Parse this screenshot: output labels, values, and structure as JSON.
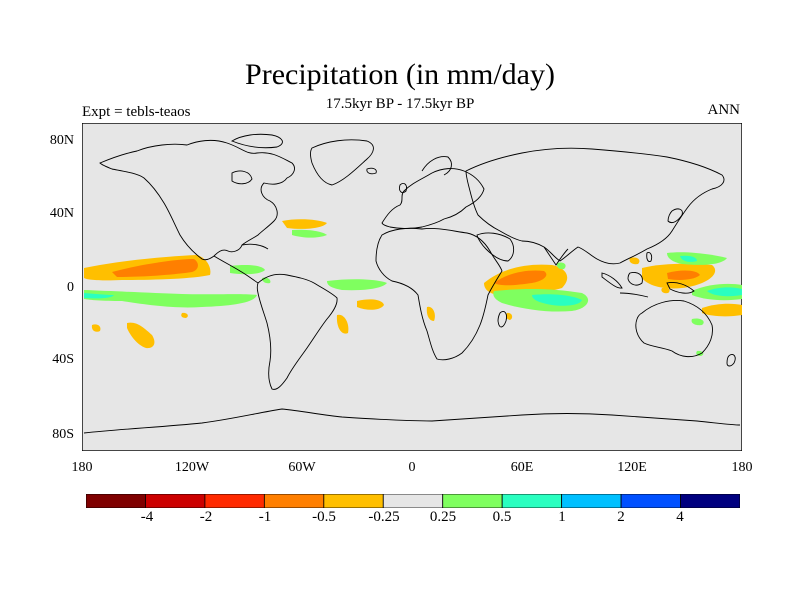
{
  "plot": {
    "title": "Precipitation (in mm/day)",
    "subtitle": "17.5kyr BP - 17.5kyr BP",
    "left_label": "Expt = tebls-teaos",
    "right_label": "ANN"
  },
  "axes": {
    "lat_ticks": [
      "80N",
      "40N",
      "0",
      "40S",
      "80S"
    ],
    "lon_ticks": [
      "180",
      "120W",
      "60W",
      "0",
      "60E",
      "120E",
      "180"
    ]
  },
  "colors": {
    "ocean": "#e6e6e6",
    "coast": "#000000"
  },
  "colorbar": {
    "colors": [
      "#7f0000",
      "#cc0000",
      "#ff2a00",
      "#ff7f00",
      "#ffbf00",
      "#e6e6e6",
      "#7fff5f",
      "#2affc0",
      "#00c0ff",
      "#0050ff",
      "#00007f"
    ],
    "labels": [
      "-4",
      "-2",
      "-1",
      "-0.5",
      "-0.25",
      "0.25",
      "0.5",
      "1",
      "2",
      "4"
    ]
  }
}
